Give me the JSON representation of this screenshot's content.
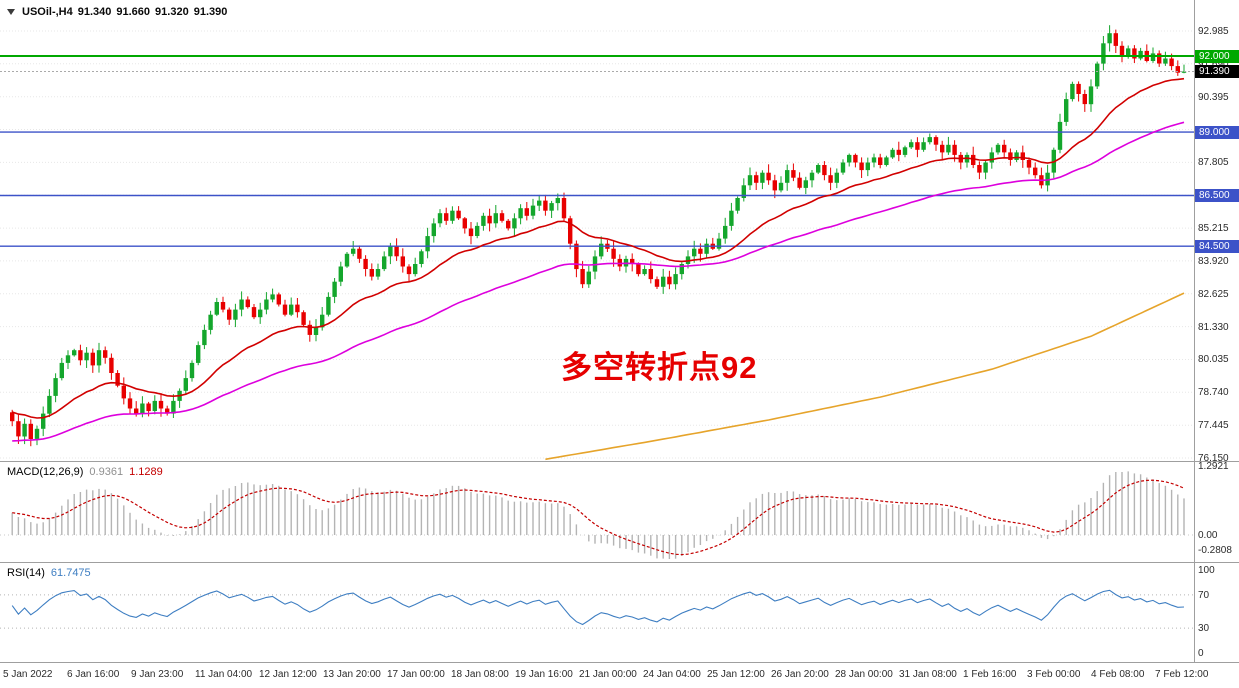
{
  "quote": {
    "symbol_period": "USOil-,H4",
    "open": "91.340",
    "high": "91.660",
    "low": "91.320",
    "close": "91.390"
  },
  "annotation": {
    "text": "多空转折点92",
    "color": "#e60000"
  },
  "current_price_badge": {
    "label": "91.390",
    "bg": "#000000"
  },
  "chart_data": [
    {
      "type": "candlestick",
      "symbol": "USOil-",
      "timeframe": "H4",
      "ohlc_current": {
        "open": 91.34,
        "high": 91.66,
        "low": 91.32,
        "close": 91.39
      },
      "ylim": [
        76.15,
        92.985
      ],
      "y_tick_step": 1.295,
      "y_ticks": [
        92.985,
        91.69,
        90.395,
        89.1,
        87.805,
        86.51,
        85.215,
        83.92,
        82.625,
        81.33,
        80.035,
        78.74,
        77.445,
        76.15
      ],
      "y_tick_labels": [
        "92.985",
        "91.690",
        "90.395",
        "89.100",
        "87.805",
        "86.510",
        "85.215",
        "83.920",
        "82.625",
        "81.330",
        "80.035",
        "78.740",
        "77.445",
        "76.150"
      ],
      "x_tick_labels": [
        "5 Jan 2022",
        "6 Jan 16:00",
        "9 Jan 23:00",
        "11 Jan 04:00",
        "12 Jan 12:00",
        "13 Jan 20:00",
        "17 Jan 00:00",
        "18 Jan 08:00",
        "19 Jan 16:00",
        "21 Jan 00:00",
        "24 Jan 04:00",
        "25 Jan 12:00",
        "26 Jan 20:00",
        "28 Jan 00:00",
        "31 Jan 08:00",
        "1 Feb 16:00",
        "3 Feb 00:00",
        "4 Feb 08:00",
        "7 Feb 12:00"
      ],
      "colors": {
        "up": "#14a62c",
        "down": "#e80000",
        "grid": "#e7e7e7",
        "current_line": "#aaaaaa"
      },
      "hlines": [
        {
          "price": 92.0,
          "label": "92.000",
          "color": "#00a800",
          "width": 2
        },
        {
          "price": 89.0,
          "label": "89.000",
          "color": "#3c52c8",
          "width": 1.4
        },
        {
          "price": 86.5,
          "label": "86.500",
          "color": "#3c52c8",
          "width": 1.4
        },
        {
          "price": 84.5,
          "label": "84.500",
          "color": "#3c52c8",
          "width": 1.4
        }
      ],
      "moving_averages": [
        {
          "name": "ma-fast",
          "kind": "ema",
          "period": 22,
          "seed_offset": 0.4,
          "color": "#d10000"
        },
        {
          "name": "ma-mid",
          "kind": "ema",
          "period": 60,
          "seed": 76.8,
          "color": "#dd00dd"
        },
        {
          "name": "ma-slow",
          "kind": "anchors",
          "color": "#e6a42b",
          "anchors": [
            [
              86,
              76.1
            ],
            [
              104,
              76.85
            ],
            [
              122,
              77.65
            ],
            [
              140,
              78.55
            ],
            [
              158,
              79.65
            ],
            [
              174,
              80.95
            ],
            [
              189,
              82.65
            ]
          ]
        }
      ],
      "closes": [
        77.6,
        77.0,
        77.5,
        76.9,
        77.3,
        77.9,
        78.6,
        79.3,
        79.9,
        80.2,
        80.4,
        80.0,
        80.3,
        79.8,
        80.4,
        80.1,
        79.5,
        79.0,
        78.5,
        78.1,
        77.9,
        78.3,
        78.0,
        78.4,
        78.1,
        77.9,
        78.4,
        78.8,
        79.3,
        79.9,
        80.6,
        81.2,
        81.8,
        82.3,
        82.0,
        81.6,
        82.0,
        82.4,
        82.1,
        81.7,
        82.0,
        82.4,
        82.6,
        82.2,
        81.8,
        82.2,
        81.9,
        81.4,
        81.0,
        81.3,
        81.8,
        82.5,
        83.1,
        83.7,
        84.2,
        84.4,
        84.0,
        83.6,
        83.3,
        83.6,
        84.1,
        84.5,
        84.1,
        83.7,
        83.4,
        83.8,
        84.3,
        84.9,
        85.4,
        85.8,
        85.5,
        85.9,
        85.6,
        85.2,
        84.9,
        85.3,
        85.7,
        85.4,
        85.8,
        85.5,
        85.2,
        85.6,
        86.0,
        85.7,
        86.1,
        86.3,
        85.9,
        86.2,
        86.4,
        85.6,
        84.6,
        83.6,
        83.0,
        83.5,
        84.1,
        84.6,
        84.4,
        84.0,
        83.7,
        84.0,
        83.8,
        83.4,
        83.6,
        83.2,
        82.9,
        83.3,
        83.0,
        83.4,
        83.8,
        84.1,
        84.4,
        84.2,
        84.6,
        84.4,
        84.8,
        85.3,
        85.9,
        86.4,
        86.9,
        87.3,
        87.0,
        87.4,
        87.1,
        86.7,
        87.0,
        87.5,
        87.2,
        86.8,
        87.1,
        87.4,
        87.7,
        87.3,
        87.0,
        87.4,
        87.8,
        88.1,
        87.8,
        87.5,
        87.8,
        88.0,
        87.7,
        88.0,
        88.3,
        88.1,
        88.4,
        88.6,
        88.3,
        88.6,
        88.8,
        88.5,
        88.2,
        88.5,
        88.1,
        87.8,
        88.1,
        87.7,
        87.4,
        87.8,
        88.2,
        88.5,
        88.2,
        87.9,
        88.2,
        87.9,
        87.6,
        87.3,
        86.9,
        87.4,
        88.3,
        89.4,
        90.3,
        90.9,
        90.5,
        90.1,
        90.8,
        91.7,
        92.5,
        92.9,
        92.4,
        92.0,
        92.3,
        91.9,
        92.2,
        91.8,
        92.1,
        91.7,
        91.9,
        91.6,
        91.34,
        91.39
      ]
    },
    {
      "type": "macd",
      "label": "MACD(12,26,9)",
      "value_main": "0.9361",
      "value_signal": "1.1289",
      "params": {
        "fast": 12,
        "slow": 26,
        "signal": 9
      },
      "y_ticks": [
        1.2921,
        0,
        -0.2808
      ],
      "y_tick_labels": [
        "1.2921",
        "0.00",
        "-0.2808"
      ],
      "scale_max": 1.2921,
      "colors": {
        "histogram": "#b4b4b4",
        "signal": "#c40000",
        "zero": "#c8c8c8"
      }
    },
    {
      "type": "rsi",
      "label": "RSI(14)",
      "value": "61.7475",
      "period": 14,
      "levels": [
        70,
        30
      ],
      "y_ticks": [
        100,
        70,
        30,
        0
      ],
      "y_tick_labels": [
        "100",
        "70",
        "30",
        "0"
      ],
      "colors": {
        "line": "#3e7ec2",
        "level": "#b5b5b5"
      }
    }
  ]
}
